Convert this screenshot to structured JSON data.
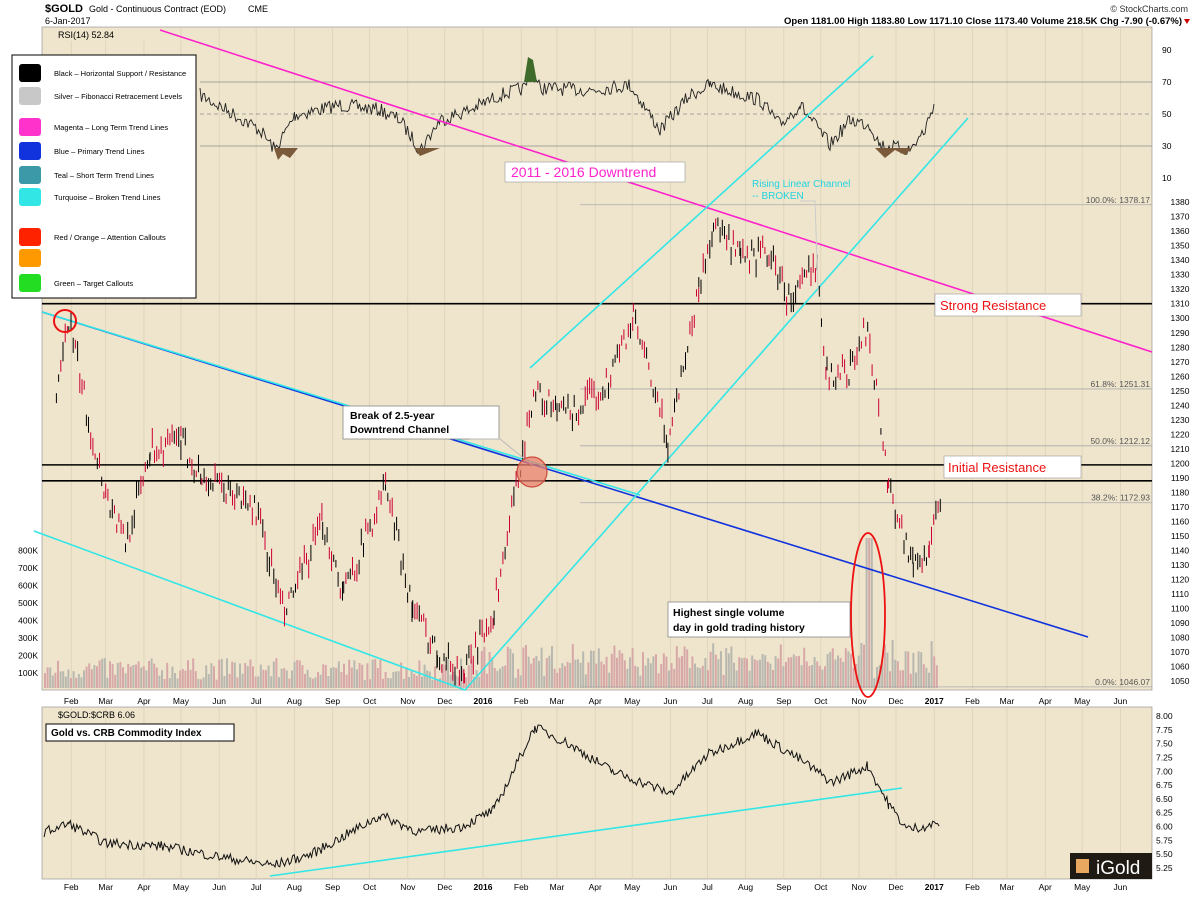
{
  "header": {
    "symbol": "$GOLD",
    "description": "Gold - Continuous Contract (EOD)",
    "exchange": "CME",
    "date": "6-Jan-2017",
    "copyright": "© StockCharts.com",
    "ohlc": "Open 1181.00  High 1183.80  Low 1171.10  Close 1173.40  Volume 218.5K  Chg -7.90 (-0.67%)"
  },
  "rsi_label": "RSI(14) 52.84",
  "ratio_label": "$GOLD:$CRB 6.06",
  "ratio_title": "Gold vs. CRB Commodity Index",
  "legend": [
    {
      "label": "Black – Horizontal Support / Resistance",
      "color": "#000000"
    },
    {
      "label": "Silver – Fibonacci Retracement Levels",
      "color": "#c8c8c8"
    },
    {
      "label": "Magenta – Long Term Trend Lines",
      "color": "#ff33cc"
    },
    {
      "label": "Blue – Primary Trend Lines",
      "color": "#1133dd"
    },
    {
      "label": "Teal – Short Term Trend Lines",
      "color": "#3c9aa8"
    },
    {
      "label": "Turquoise – Broken Trend Lines",
      "color": "#33e6e6"
    },
    {
      "label": "Red / Orange – Attention Callouts",
      "color": "#ff2200"
    },
    {
      "label": "",
      "color": "#ff9900"
    },
    {
      "label": "Green – Target Callouts",
      "color": "#22dd22"
    }
  ],
  "annotations": {
    "downtrend": "2011 - 2016 Downtrend",
    "rising_channel": "Rising Linear Channel -- BROKEN",
    "strong_resistance": "Strong Resistance",
    "initial_resistance": "Initial Resistance",
    "break_channel": "Break of 2.5-year Downtrend Channel",
    "highest_volume": "Highest single volume day in gold trading history"
  },
  "watermark": "iGold",
  "chart_data": {
    "type": "line",
    "price_axis": {
      "ylim": [
        1040,
        1390
      ],
      "ticks": [
        1050,
        1060,
        1070,
        1080,
        1090,
        1100,
        1110,
        1120,
        1130,
        1140,
        1150,
        1160,
        1170,
        1180,
        1190,
        1200,
        1210,
        1220,
        1230,
        1240,
        1250,
        1260,
        1270,
        1280,
        1290,
        1300,
        1310,
        1320,
        1330,
        1340,
        1350,
        1360,
        1370,
        1380
      ]
    },
    "x_ticks": [
      "Feb",
      "Mar",
      "Apr",
      "May",
      "Jun",
      "Jul",
      "Aug",
      "Sep",
      "Oct",
      "Nov",
      "Dec",
      "2016",
      "Feb",
      "Mar",
      "Apr",
      "May",
      "Jun",
      "Jul",
      "Aug",
      "Sep",
      "Oct",
      "Nov",
      "Dec",
      "2017",
      "Feb",
      "Mar",
      "Apr",
      "May",
      "Jun"
    ],
    "price_series": {
      "name": "$GOLD",
      "x": [
        "2015-01-20",
        "2015-01-30",
        "2015-02-15",
        "2015-03-01",
        "2015-03-17",
        "2015-04-06",
        "2015-05-01",
        "2015-05-18",
        "2015-06-10",
        "2015-07-01",
        "2015-07-24",
        "2015-08-24",
        "2015-09-10",
        "2015-10-14",
        "2015-11-05",
        "2015-11-25",
        "2015-12-17",
        "2016-01-10",
        "2016-02-11",
        "2016-03-01",
        "2016-03-15",
        "2016-04-10",
        "2016-05-02",
        "2016-05-30",
        "2016-06-24",
        "2016-07-06",
        "2016-07-28",
        "2016-08-20",
        "2016-09-07",
        "2016-09-28",
        "2016-10-06",
        "2016-10-25",
        "2016-11-08",
        "2016-11-25",
        "2016-12-15",
        "2016-12-28",
        "2017-01-06"
      ],
      "y": [
        1240,
        1300,
        1230,
        1180,
        1145,
        1210,
        1215,
        1190,
        1180,
        1168,
        1095,
        1160,
        1110,
        1185,
        1100,
        1070,
        1055,
        1100,
        1250,
        1235,
        1235,
        1255,
        1300,
        1215,
        1320,
        1365,
        1340,
        1345,
        1310,
        1340,
        1260,
        1265,
        1295,
        1185,
        1130,
        1140,
        1173.4
      ]
    },
    "fibonacci": [
      {
        "label": "100.0%: 1378.17",
        "value": 1378.17
      },
      {
        "label": "61.8%: 1251.31",
        "value": 1251.31
      },
      {
        "label": "50.0%: 1212.12",
        "value": 1212.12
      },
      {
        "label": "38.2%: 1172.93",
        "value": 1172.93
      },
      {
        "label": "0.0%: 1046.07",
        "value": 1046.07
      }
    ],
    "horizontal_levels": [
      1310,
      1199,
      1188
    ],
    "volume": {
      "ticks": [
        "100K",
        "200K",
        "300K",
        "400K",
        "500K",
        "600K",
        "700K",
        "800K"
      ],
      "max_label": "800K",
      "peak": 800000
    },
    "rsi": {
      "ticks": [
        10,
        30,
        50,
        70,
        90
      ],
      "levels": [
        30,
        50,
        70
      ]
    },
    "ratio": {
      "ylim": [
        5.2,
        8.05
      ],
      "ticks": [
        5.25,
        5.5,
        5.75,
        6.0,
        6.25,
        6.5,
        6.75,
        7.0,
        7.25,
        7.5,
        7.75,
        8.0
      ],
      "x": [
        "2015-01-10",
        "2015-01-30",
        "2015-03-01",
        "2015-04-15",
        "2015-06-01",
        "2015-07-15",
        "2015-08-15",
        "2015-10-10",
        "2015-11-10",
        "2015-12-15",
        "2016-01-10",
        "2016-02-12",
        "2016-03-10",
        "2016-04-15",
        "2016-06-01",
        "2016-07-01",
        "2016-08-10",
        "2016-09-15",
        "2016-10-10",
        "2016-11-08",
        "2016-11-25",
        "2016-12-10",
        "2017-01-06"
      ],
      "y": [
        5.9,
        6.05,
        5.7,
        5.65,
        5.45,
        5.3,
        5.5,
        6.2,
        5.9,
        6.0,
        6.3,
        7.8,
        7.5,
        7.0,
        6.6,
        7.3,
        7.7,
        7.2,
        6.8,
        7.1,
        6.4,
        5.95,
        6.06
      ]
    }
  }
}
